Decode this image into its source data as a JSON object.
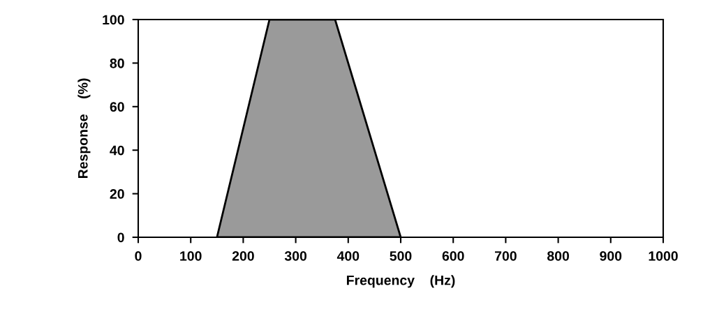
{
  "chart_data": {
    "type": "area",
    "xlabel": "Frequency    (Hz)",
    "ylabel": "Response    (%)",
    "x": [
      150,
      250,
      375,
      500
    ],
    "series": [
      {
        "color": "#9a9a9a",
        "values": [
          0,
          100,
          100,
          0
        ]
      }
    ],
    "xlim": [
      0,
      1000
    ],
    "xticks": [
      0,
      100,
      200,
      300,
      400,
      500,
      600,
      700,
      800,
      900,
      1000
    ],
    "ylim": [
      0,
      100
    ],
    "yticks": [
      0,
      20,
      40,
      60,
      80,
      100
    ],
    "grid": false,
    "legend": false
  }
}
